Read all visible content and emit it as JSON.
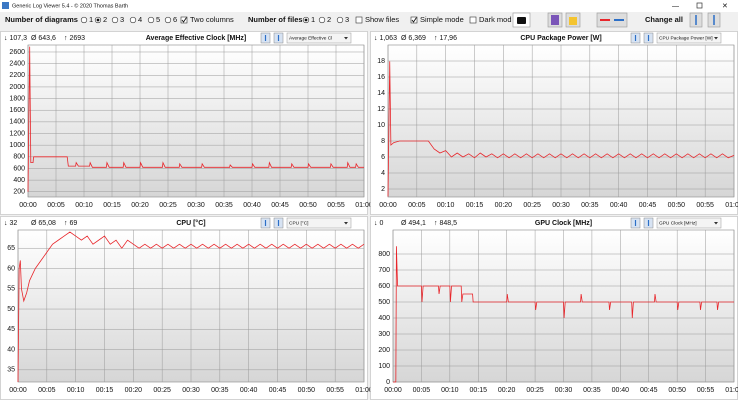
{
  "window_title": "Generic Log Viewer 5.4 - © 2020 Thomas Barth",
  "toolbar": {
    "diagrams_label": "Number of diagrams",
    "diagram_options": [
      "1",
      "2",
      "3",
      "4",
      "5",
      "6"
    ],
    "diagram_selected": 1,
    "two_columns": {
      "label": "Two columns",
      "checked": true
    },
    "files_label": "Number of files",
    "file_options": [
      "1",
      "2",
      "3"
    ],
    "file_selected": 0,
    "show_files": {
      "label": "Show files",
      "checked": false
    },
    "simple_mode": {
      "label": "Simple mode",
      "checked": true
    },
    "dark_mode": {
      "label": "Dark mod",
      "checked": false
    },
    "change_all": "Change all"
  },
  "chart_data": [
    {
      "type": "line",
      "title": "Average Effective Clock [MHz]",
      "stats": [
        "↓ 107,3",
        "Ø 643,6",
        "↑ 2693"
      ],
      "selector": "Average Effective Cl",
      "color": "#e8262b",
      "grid": true,
      "xlim": [
        0,
        60
      ],
      "xticks": [
        {
          "value": 0,
          "label": "00:00"
        },
        {
          "value": 5,
          "label": "00:05"
        },
        {
          "value": 10,
          "label": "00:10"
        },
        {
          "value": 15,
          "label": "00:15"
        },
        {
          "value": 20,
          "label": "00:20"
        },
        {
          "value": 25,
          "label": "00:25"
        },
        {
          "value": 30,
          "label": "00:30"
        },
        {
          "value": 35,
          "label": "00:35"
        },
        {
          "value": 40,
          "label": "00:40"
        },
        {
          "value": 45,
          "label": "00:45"
        },
        {
          "value": 50,
          "label": "00:50"
        },
        {
          "value": 55,
          "label": "00:55"
        },
        {
          "value": 60,
          "label": "01:00"
        }
      ],
      "ylim": [
        110,
        2720
      ],
      "yticks": [
        200,
        400,
        600,
        800,
        1000,
        1200,
        1400,
        1600,
        1800,
        2000,
        2200,
        2400,
        2600
      ],
      "x": [
        0,
        0.3,
        0.5,
        0.9,
        1,
        7,
        7.2,
        8.5,
        8.6,
        9,
        11,
        11.1,
        11.5,
        14,
        14.1,
        14.5,
        17,
        17.1,
        17.5,
        20,
        20.1,
        20.5,
        24,
        24.1,
        24.5,
        27,
        27.1,
        27.5,
        31,
        31.1,
        31.5,
        36,
        36.1,
        36.5,
        40,
        40.1,
        40.5,
        43,
        43.1,
        43.5,
        47,
        47.1,
        47.5,
        50,
        50.1,
        50.5,
        54,
        54.1,
        54.5,
        57,
        57.1,
        57.5,
        58.5,
        58.6,
        59,
        60
      ],
      "values": [
        200,
        2693,
        700,
        700,
        800,
        800,
        640,
        640,
        700,
        640,
        640,
        700,
        620,
        620,
        700,
        620,
        620,
        700,
        620,
        620,
        700,
        620,
        620,
        700,
        620,
        620,
        680,
        620,
        620,
        680,
        620,
        620,
        660,
        620,
        620,
        680,
        620,
        620,
        700,
        620,
        620,
        680,
        620,
        620,
        680,
        620,
        620,
        680,
        620,
        620,
        700,
        620,
        620,
        680,
        620,
        620
      ]
    },
    {
      "type": "line",
      "title": "CPU Package Power [W]",
      "stats": [
        "↓ 1,063",
        "Ø 6,369",
        "↑ 17,96"
      ],
      "selector": "CPU Package Power [W]",
      "color": "#e8262b",
      "grid": true,
      "xlim": [
        0,
        60
      ],
      "xticks": [
        {
          "value": 0,
          "label": "00:00"
        },
        {
          "value": 5,
          "label": "00:05"
        },
        {
          "value": 10,
          "label": "00:10"
        },
        {
          "value": 15,
          "label": "00:15"
        },
        {
          "value": 20,
          "label": "00:20"
        },
        {
          "value": 25,
          "label": "00:25"
        },
        {
          "value": 30,
          "label": "00:30"
        },
        {
          "value": 35,
          "label": "00:35"
        },
        {
          "value": 40,
          "label": "00:40"
        },
        {
          "value": 45,
          "label": "00:45"
        },
        {
          "value": 50,
          "label": "00:50"
        },
        {
          "value": 55,
          "label": "00:55"
        },
        {
          "value": 60,
          "label": "01:00"
        }
      ],
      "ylim": [
        1,
        20
      ],
      "yticks": [
        2,
        4,
        6,
        8,
        10,
        12,
        14,
        16,
        18
      ],
      "x": [
        0,
        0.3,
        0.5,
        1,
        2,
        7,
        8,
        9,
        10,
        11,
        12,
        13,
        14,
        15,
        16,
        17,
        18,
        19,
        20,
        21,
        22,
        23,
        24,
        25,
        26,
        27,
        28,
        29,
        30,
        31,
        32,
        33,
        34,
        35,
        36,
        37,
        38,
        39,
        40,
        41,
        42,
        43,
        44,
        45,
        46,
        47,
        48,
        49,
        50,
        51,
        52,
        53,
        54,
        55,
        56,
        57,
        58,
        59,
        60
      ],
      "values": [
        1.063,
        17.96,
        7.5,
        7.8,
        8,
        8,
        7,
        6.5,
        6.8,
        6,
        6.5,
        6,
        6.4,
        5.9,
        6.5,
        6,
        6.4,
        5.9,
        6.4,
        5.9,
        6.4,
        5.9,
        6.4,
        5.9,
        6.4,
        5.9,
        6.4,
        5.9,
        6.4,
        5.9,
        6.4,
        5.9,
        6.4,
        5.9,
        6.4,
        5.9,
        6.4,
        5.9,
        6.4,
        5.9,
        6.4,
        5.9,
        6.4,
        5.9,
        6.4,
        5.9,
        6.4,
        5.9,
        6.4,
        5.9,
        6.4,
        5.9,
        6.4,
        5.9,
        6.4,
        5.9,
        6.4,
        5.9,
        6.2
      ]
    },
    {
      "type": "line",
      "title": "CPU [°C]",
      "stats": [
        "↓ 32",
        "Ø 65,08",
        "↑ 69"
      ],
      "selector": "CPU [°C]",
      "color": "#e8262b",
      "grid": true,
      "xlim": [
        0,
        60
      ],
      "xticks": [
        {
          "value": 0,
          "label": "00:00"
        },
        {
          "value": 5,
          "label": "00:05"
        },
        {
          "value": 10,
          "label": "00:10"
        },
        {
          "value": 15,
          "label": "00:15"
        },
        {
          "value": 20,
          "label": "00:20"
        },
        {
          "value": 25,
          "label": "00:25"
        },
        {
          "value": 30,
          "label": "00:30"
        },
        {
          "value": 35,
          "label": "00:35"
        },
        {
          "value": 40,
          "label": "00:40"
        },
        {
          "value": 45,
          "label": "00:45"
        },
        {
          "value": 50,
          "label": "00:50"
        },
        {
          "value": 55,
          "label": "00:55"
        },
        {
          "value": 60,
          "label": "01:00"
        }
      ],
      "ylim": [
        32,
        69.5
      ],
      "yticks": [
        35,
        40,
        45,
        50,
        55,
        60,
        65
      ],
      "x": [
        0,
        0.2,
        0.4,
        0.6,
        1,
        1.5,
        2,
        3,
        4,
        5,
        6,
        7,
        8,
        9,
        10,
        11,
        12,
        13,
        14,
        15,
        16,
        17,
        18,
        19,
        20,
        21,
        22,
        23,
        24,
        25,
        26,
        27,
        28,
        29,
        30,
        31,
        32,
        33,
        34,
        35,
        36,
        37,
        38,
        39,
        40,
        41,
        42,
        43,
        44,
        45,
        46,
        47,
        48,
        49,
        50,
        51,
        52,
        53,
        54,
        55,
        56,
        57,
        58,
        59,
        60
      ],
      "values": [
        32,
        60,
        62,
        55,
        52,
        54,
        57,
        60,
        62,
        64,
        66,
        67,
        68,
        69,
        68,
        67,
        68,
        66,
        67,
        68,
        66,
        67,
        65,
        67,
        66,
        65,
        66,
        65,
        66,
        65,
        66,
        65,
        66,
        65,
        66,
        65,
        66,
        65,
        66,
        65,
        66,
        65,
        66,
        65,
        66,
        65,
        66,
        65,
        66,
        65,
        66,
        65,
        66,
        65,
        66,
        65,
        66,
        65,
        66,
        65,
        66,
        65,
        66,
        65,
        66
      ]
    },
    {
      "type": "line",
      "title": "GPU Clock [MHz]",
      "stats": [
        "↓ 0",
        "Ø 494,1",
        "↑ 848,5"
      ],
      "selector": "GPU Clock [MHz]",
      "color": "#e8262b",
      "grid": true,
      "xlim": [
        0,
        60
      ],
      "xticks": [
        {
          "value": 0,
          "label": "00:00"
        },
        {
          "value": 5,
          "label": "00:05"
        },
        {
          "value": 10,
          "label": "00:10"
        },
        {
          "value": 15,
          "label": "00:15"
        },
        {
          "value": 20,
          "label": "00:20"
        },
        {
          "value": 25,
          "label": "00:25"
        },
        {
          "value": 30,
          "label": "00:30"
        },
        {
          "value": 35,
          "label": "00:35"
        },
        {
          "value": 40,
          "label": "00:40"
        },
        {
          "value": 45,
          "label": "00:45"
        },
        {
          "value": 50,
          "label": "00:50"
        },
        {
          "value": 55,
          "label": "00:55"
        },
        {
          "value": 60,
          "label": "01:00"
        }
      ],
      "ylim": [
        0,
        950
      ],
      "yticks": [
        0,
        100,
        200,
        300,
        400,
        500,
        600,
        700,
        800
      ],
      "x": [
        0,
        0.5,
        0.6,
        0.8,
        5,
        5.1,
        5.3,
        8,
        8.1,
        8.3,
        10,
        10.1,
        10.3,
        12,
        12.1,
        12.3,
        14,
        14.1,
        20,
        20.1,
        20.3,
        25,
        25.1,
        25.3,
        30,
        30.1,
        30.3,
        33,
        33.1,
        33.3,
        38,
        38.1,
        38.3,
        42,
        42.1,
        42.3,
        46,
        46.1,
        46.3,
        50,
        50.1,
        50.3,
        54,
        54.1,
        54.3,
        57,
        57.1,
        57.3,
        60
      ],
      "values": [
        0,
        0,
        848.5,
        600,
        600,
        500,
        600,
        600,
        550,
        600,
        600,
        500,
        600,
        600,
        500,
        550,
        550,
        500,
        500,
        550,
        500,
        500,
        450,
        500,
        500,
        400,
        500,
        500,
        550,
        500,
        500,
        450,
        500,
        500,
        400,
        500,
        500,
        550,
        500,
        500,
        450,
        500,
        500,
        450,
        500,
        500,
        450,
        500,
        500
      ]
    }
  ]
}
